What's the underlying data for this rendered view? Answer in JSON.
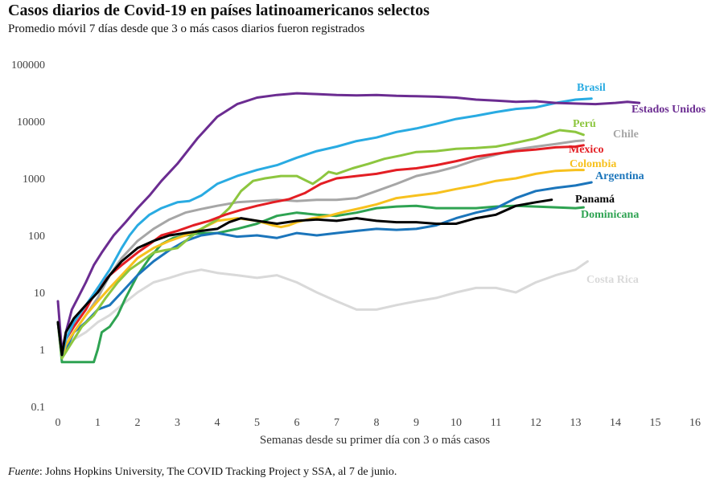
{
  "title": "Casos diarios de Covid-19 en países latinoamericanos selectos",
  "subtitle": "Promedio móvil 7 días desde que 3 o más casos diarios fueron registrados",
  "source": {
    "label": "Fuente",
    "text": ": Johns Hopkins University, The COVID Tracking Project y SSA, al 7 de junio."
  },
  "chart_data": {
    "type": "line",
    "xlabel": "Semanas desde su primer día con 3 o más casos",
    "ylabel": "",
    "yscale": "log",
    "xlim": [
      0,
      16
    ],
    "ylim": [
      0.1,
      100000
    ],
    "xticks": [
      "0",
      "1",
      "2",
      "3",
      "4",
      "5",
      "6",
      "7",
      "8",
      "9",
      "10",
      "11",
      "12",
      "13",
      "14",
      "15",
      "16"
    ],
    "yticks": [
      "0.1",
      "1",
      "10",
      "100",
      "1000",
      "10000",
      "100000"
    ],
    "grid": false,
    "legend": "direct labels at line ends",
    "series": [
      {
        "name": "Estados Unidos",
        "color": "#6b2c91",
        "x": [
          0,
          0.1,
          0.2,
          0.35,
          0.5,
          0.7,
          0.9,
          1.1,
          1.4,
          1.7,
          2.0,
          2.3,
          2.6,
          3.0,
          3.5,
          4.0,
          4.5,
          5.0,
          5.5,
          6.0,
          6.5,
          7.0,
          7.5,
          8.0,
          8.5,
          9.0,
          9.5,
          10.0,
          10.5,
          11.0,
          11.5,
          12.0,
          12.5,
          13.0,
          13.5,
          14.0,
          14.3,
          14.6
        ],
        "y": [
          7,
          0.9,
          2,
          5,
          8,
          15,
          30,
          50,
          100,
          170,
          300,
          500,
          900,
          1800,
          5000,
          12000,
          20000,
          26000,
          29000,
          31000,
          30000,
          29000,
          28500,
          29000,
          28000,
          27500,
          27000,
          26000,
          24000,
          23000,
          22000,
          22500,
          21000,
          20500,
          20000,
          21000,
          22000,
          21000
        ]
      },
      {
        "name": "Brasil",
        "color": "#29abe2",
        "x": [
          0,
          0.1,
          0.2,
          0.4,
          0.7,
          1.0,
          1.3,
          1.6,
          1.8,
          2.0,
          2.3,
          2.6,
          3.0,
          3.3,
          3.6,
          4.0,
          4.5,
          5.0,
          5.5,
          6.0,
          6.5,
          7.0,
          7.5,
          8.0,
          8.5,
          9.0,
          9.5,
          10.0,
          10.5,
          11.0,
          11.5,
          12.0,
          12.5,
          13.0,
          13.4
        ],
        "y": [
          3,
          0.8,
          1.5,
          3,
          6,
          12,
          25,
          60,
          100,
          150,
          230,
          300,
          380,
          400,
          500,
          800,
          1100,
          1400,
          1700,
          2300,
          3000,
          3600,
          4500,
          5200,
          6500,
          7500,
          9000,
          11000,
          12500,
          14500,
          16500,
          17500,
          21000,
          24000,
          25000
        ]
      },
      {
        "name": "Perú",
        "color": "#8dc63f",
        "x": [
          0,
          0.1,
          0.2,
          0.4,
          0.6,
          0.9,
          1.2,
          1.5,
          1.8,
          2.1,
          2.4,
          2.7,
          3.0,
          3.3,
          3.6,
          4.0,
          4.3,
          4.6,
          4.9,
          5.2,
          5.6,
          6.0,
          6.4,
          6.6,
          6.8,
          7.0,
          7.4,
          7.8,
          8.2,
          8.6,
          9.0,
          9.5,
          10.0,
          10.5,
          11.0,
          11.5,
          12.0,
          12.3,
          12.6,
          13.0,
          13.2
        ],
        "y": [
          3,
          0.7,
          0.9,
          1.5,
          2.5,
          4,
          8,
          15,
          25,
          35,
          50,
          55,
          60,
          90,
          130,
          190,
          300,
          600,
          900,
          1000,
          1100,
          1100,
          800,
          1000,
          1300,
          1200,
          1500,
          1800,
          2200,
          2500,
          2900,
          3000,
          3300,
          3400,
          3600,
          4200,
          5000,
          6000,
          7000,
          6500,
          5800
        ]
      },
      {
        "name": "Chile",
        "color": "#a6a6a6",
        "x": [
          0,
          0.1,
          0.2,
          0.4,
          0.7,
          1.0,
          1.3,
          1.6,
          2.0,
          2.4,
          2.8,
          3.2,
          3.6,
          4.0,
          4.5,
          5.0,
          5.5,
          6.0,
          6.5,
          7.0,
          7.5,
          8.0,
          8.5,
          9.0,
          9.5,
          10.0,
          10.5,
          11.0,
          11.5,
          12.0,
          12.5,
          13.0,
          13.2
        ],
        "y": [
          3,
          0.8,
          1.2,
          2,
          4,
          8,
          20,
          40,
          80,
          130,
          190,
          250,
          290,
          330,
          380,
          400,
          420,
          400,
          420,
          420,
          450,
          600,
          800,
          1100,
          1300,
          1600,
          2100,
          2600,
          3200,
          3600,
          4000,
          4500,
          4600
        ]
      },
      {
        "name": "México",
        "color": "#e31e24",
        "x": [
          0,
          0.1,
          0.2,
          0.4,
          0.7,
          1.0,
          1.3,
          1.6,
          2.0,
          2.3,
          2.6,
          3.0,
          3.4,
          3.8,
          4.2,
          4.6,
          5.0,
          5.4,
          5.8,
          6.2,
          6.6,
          7.0,
          7.5,
          8.0,
          8.5,
          9.0,
          9.5,
          10.0,
          10.5,
          11.0,
          11.5,
          12.0,
          12.5,
          13.0,
          13.2
        ],
        "y": [
          3,
          0.9,
          1.5,
          2.5,
          5,
          12,
          20,
          30,
          50,
          70,
          100,
          120,
          150,
          180,
          230,
          280,
          330,
          380,
          430,
          550,
          800,
          1000,
          1100,
          1200,
          1400,
          1500,
          1700,
          2000,
          2400,
          2700,
          3000,
          3200,
          3500,
          3600,
          3800
        ]
      },
      {
        "name": "Colombia",
        "color": "#f7c11e",
        "x": [
          0,
          0.1,
          0.2,
          0.4,
          0.7,
          1.0,
          1.3,
          1.6,
          2.0,
          2.4,
          2.8,
          3.2,
          3.6,
          4.0,
          4.5,
          5.0,
          5.4,
          5.6,
          5.8,
          6.0,
          6.4,
          6.8,
          7.2,
          7.6,
          8.0,
          8.5,
          9.0,
          9.5,
          10.0,
          10.5,
          11.0,
          11.5,
          12.0,
          12.5,
          13.0,
          13.2
        ],
        "y": [
          3,
          0.7,
          1.2,
          2,
          4,
          7,
          12,
          20,
          40,
          60,
          80,
          100,
          130,
          180,
          200,
          180,
          150,
          140,
          150,
          170,
          200,
          220,
          260,
          300,
          350,
          450,
          500,
          550,
          650,
          750,
          900,
          1000,
          1200,
          1350,
          1400,
          1400
        ]
      },
      {
        "name": "Argentina",
        "color": "#1b75bb",
        "x": [
          0,
          0.1,
          0.2,
          0.4,
          0.7,
          1.0,
          1.3,
          1.6,
          2.0,
          2.4,
          2.8,
          3.2,
          3.6,
          4.0,
          4.5,
          5.0,
          5.5,
          6.0,
          6.5,
          7.0,
          7.5,
          8.0,
          8.5,
          9.0,
          9.5,
          10.0,
          10.5,
          11.0,
          11.5,
          12.0,
          12.5,
          13.0,
          13.4
        ],
        "y": [
          3,
          0.8,
          1,
          2,
          3,
          5,
          6,
          10,
          20,
          35,
          55,
          80,
          100,
          110,
          95,
          100,
          90,
          110,
          100,
          110,
          120,
          130,
          125,
          130,
          150,
          200,
          250,
          300,
          450,
          600,
          680,
          750,
          850
        ]
      },
      {
        "name": "Panamá",
        "color": "#000000",
        "x": [
          0,
          0.1,
          0.2,
          0.4,
          0.7,
          1.0,
          1.3,
          1.6,
          2.0,
          2.4,
          2.8,
          3.2,
          3.6,
          4.0,
          4.3,
          4.6,
          5.0,
          5.5,
          6.0,
          6.5,
          7.0,
          7.5,
          8.0,
          8.5,
          9.0,
          9.5,
          10.0,
          10.5,
          11.0,
          11.5,
          12.0,
          12.4
        ],
        "y": [
          3,
          0.8,
          2,
          3.5,
          6,
          10,
          20,
          35,
          60,
          80,
          100,
          110,
          120,
          130,
          170,
          200,
          180,
          160,
          180,
          190,
          180,
          200,
          180,
          170,
          170,
          160,
          160,
          200,
          230,
          330,
          380,
          420
        ]
      },
      {
        "name": "Dominicana",
        "color": "#2ea352",
        "x": [
          0,
          0.1,
          0.2,
          0.35,
          0.6,
          0.9,
          1.0,
          1.1,
          1.3,
          1.5,
          1.7,
          2.0,
          2.3,
          2.6,
          2.9,
          3.2,
          3.6,
          4.0,
          4.5,
          5.0,
          5.5,
          6.0,
          6.5,
          7.0,
          7.5,
          8.0,
          8.5,
          9.0,
          9.5,
          10.0,
          10.5,
          11.0,
          11.5,
          12.0,
          12.5,
          13.0,
          13.2
        ],
        "y": [
          3,
          0.6,
          0.6,
          0.6,
          0.6,
          0.6,
          1,
          2,
          2.5,
          4,
          8,
          20,
          40,
          70,
          90,
          100,
          110,
          110,
          130,
          160,
          220,
          250,
          230,
          220,
          250,
          300,
          320,
          330,
          300,
          300,
          300,
          320,
          330,
          320,
          310,
          300,
          310
        ]
      },
      {
        "name": "Costa Rica",
        "color": "#d9d9d9",
        "x": [
          0,
          0.1,
          0.2,
          0.4,
          0.7,
          1.0,
          1.3,
          1.6,
          2.0,
          2.4,
          2.8,
          3.2,
          3.6,
          4.0,
          4.5,
          5.0,
          5.5,
          6.0,
          6.5,
          7.0,
          7.5,
          8.0,
          8.5,
          9.0,
          9.5,
          10.0,
          10.5,
          11.0,
          11.5,
          12.0,
          12.5,
          13.0,
          13.3
        ],
        "y": [
          3,
          0.7,
          1,
          1.5,
          2,
          3,
          4,
          6,
          10,
          15,
          18,
          22,
          25,
          22,
          20,
          18,
          20,
          15,
          10,
          7,
          5,
          5,
          6,
          7,
          8,
          10,
          12,
          12,
          10,
          15,
          20,
          25,
          35
        ]
      }
    ]
  }
}
